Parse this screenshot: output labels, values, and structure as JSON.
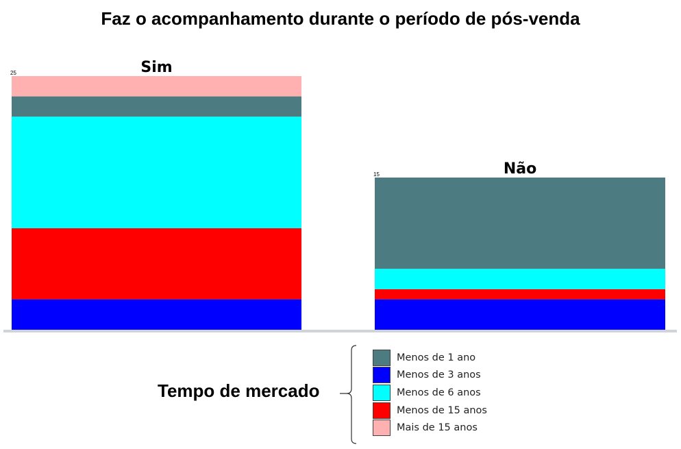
{
  "chart_data": {
    "type": "bar",
    "stacked": true,
    "title": "Faz o acompanhamento durante o período de pós-venda",
    "categories": [
      "Sim",
      "Não"
    ],
    "total_labels": [
      "25",
      "15"
    ],
    "totals": [
      25,
      15
    ],
    "series": [
      {
        "name": "Menos de 3 anos",
        "color": "#0000FF",
        "values": [
          3,
          3
        ]
      },
      {
        "name": "Menos de 15 anos",
        "color": "#FF0000",
        "values": [
          7,
          1
        ]
      },
      {
        "name": "Menos de 6 anos",
        "color": "#00FFFF",
        "values": [
          11,
          2
        ]
      },
      {
        "name": "Menos de 1 ano",
        "color": "#4D7B82",
        "values": [
          2,
          9
        ]
      },
      {
        "name": "Mais de 15 anos",
        "color": "#FFB0B0",
        "values": [
          2,
          0
        ]
      }
    ],
    "legend_title": "Tempo de mercado",
    "legend_order": [
      "Menos de 1 ano",
      "Menos de 3 anos",
      "Menos de 6 anos",
      "Menos de 15 anos",
      "Mais de 15 anos"
    ],
    "legend_placement": "bottom",
    "grid": false,
    "ylim": [
      0,
      25
    ],
    "xlabel": "",
    "ylabel": ""
  }
}
